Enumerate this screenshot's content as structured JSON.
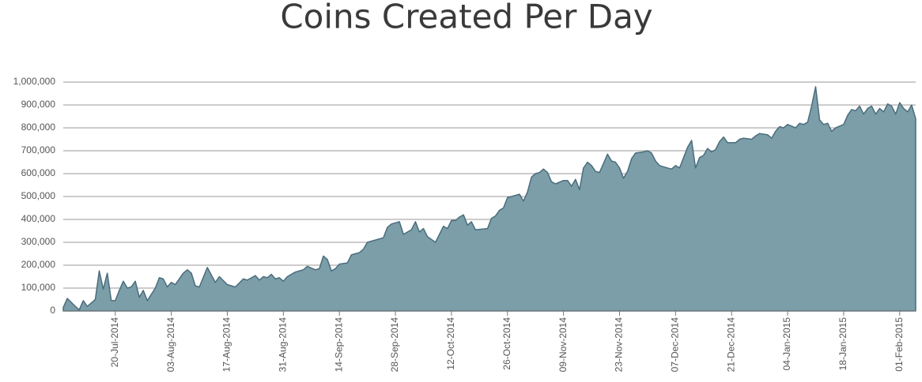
{
  "chart_data": {
    "type": "area",
    "title": "Coins Created Per Day",
    "color": "#7b9ea9",
    "line_color": "#4a6d7c",
    "grid": true,
    "x": [
      "07-Jul-2014",
      "08-Jul-2014",
      "10-Jul-2014",
      "11-Jul-2014",
      "12-Jul-2014",
      "13-Jul-2014",
      "14-Jul-2014",
      "15-Jul-2014",
      "16-Jul-2014",
      "17-Jul-2014",
      "18-Jul-2014",
      "19-Jul-2014",
      "20-Jul-2014",
      "21-Jul-2014",
      "22-Jul-2014",
      "23-Jul-2014",
      "24-Jul-2014",
      "25-Jul-2014",
      "26-Jul-2014",
      "27-Jul-2014",
      "28-Jul-2014",
      "30-Jul-2014",
      "31-Jul-2014",
      "01-Aug-2014",
      "02-Aug-2014",
      "03-Aug-2014",
      "04-Aug-2014",
      "06-Aug-2014",
      "07-Aug-2014",
      "08-Aug-2014",
      "09-Aug-2014",
      "10-Aug-2014",
      "12-Aug-2014",
      "14-Aug-2014",
      "15-Aug-2014",
      "17-Aug-2014",
      "19-Aug-2014",
      "21-Aug-2014",
      "22-Aug-2014",
      "24-Aug-2014",
      "25-Aug-2014",
      "26-Aug-2014",
      "27-Aug-2014",
      "28-Aug-2014",
      "29-Aug-2014",
      "30-Aug-2014",
      "31-Aug-2014",
      "01-Sep-2014",
      "03-Sep-2014",
      "05-Sep-2014",
      "06-Sep-2014",
      "08-Sep-2014",
      "09-Sep-2014",
      "10-Sep-2014",
      "11-Sep-2014",
      "12-Sep-2014",
      "13-Sep-2014",
      "14-Sep-2014",
      "16-Sep-2014",
      "17-Sep-2014",
      "19-Sep-2014",
      "20-Sep-2014",
      "21-Sep-2014",
      "23-Sep-2014",
      "25-Sep-2014",
      "26-Sep-2014",
      "27-Sep-2014",
      "29-Sep-2014",
      "30-Sep-2014",
      "02-Oct-2014",
      "03-Oct-2014",
      "04-Oct-2014",
      "05-Oct-2014",
      "06-Oct-2014",
      "08-Oct-2014",
      "10-Oct-2014",
      "11-Oct-2014",
      "12-Oct-2014",
      "13-Oct-2014",
      "14-Oct-2014",
      "15-Oct-2014",
      "16-Oct-2014",
      "17-Oct-2014",
      "18-Oct-2014",
      "21-Oct-2014",
      "22-Oct-2014",
      "23-Oct-2014",
      "24-Oct-2014",
      "25-Oct-2014",
      "26-Oct-2014",
      "27-Oct-2014",
      "29-Oct-2014",
      "30-Oct-2014",
      "31-Oct-2014",
      "01-Nov-2014",
      "02-Nov-2014",
      "03-Nov-2014",
      "04-Nov-2014",
      "05-Nov-2014",
      "06-Nov-2014",
      "07-Nov-2014",
      "09-Nov-2014",
      "10-Nov-2014",
      "11-Nov-2014",
      "12-Nov-2014",
      "13-Nov-2014",
      "14-Nov-2014",
      "15-Nov-2014",
      "16-Nov-2014",
      "17-Nov-2014",
      "18-Nov-2014",
      "20-Nov-2014",
      "21-Nov-2014",
      "22-Nov-2014",
      "23-Nov-2014",
      "24-Nov-2014",
      "25-Nov-2014",
      "26-Nov-2014",
      "27-Nov-2014",
      "29-Nov-2014",
      "30-Nov-2014",
      "01-Dec-2014",
      "02-Dec-2014",
      "03-Dec-2014",
      "05-Dec-2014",
      "06-Dec-2014",
      "07-Dec-2014",
      "08-Dec-2014",
      "09-Dec-2014",
      "10-Dec-2014",
      "11-Dec-2014",
      "12-Dec-2014",
      "13-Dec-2014",
      "14-Dec-2014",
      "15-Dec-2014",
      "16-Dec-2014",
      "17-Dec-2014",
      "18-Dec-2014",
      "19-Dec-2014",
      "20-Dec-2014",
      "22-Dec-2014",
      "23-Dec-2014",
      "24-Dec-2014",
      "26-Dec-2014",
      "27-Dec-2014",
      "28-Dec-2014",
      "30-Dec-2014",
      "31-Dec-2014",
      "01-Jan-2015",
      "02-Jan-2015",
      "03-Jan-2015",
      "04-Jan-2015",
      "06-Jan-2015",
      "07-Jan-2015",
      "08-Jan-2015",
      "09-Jan-2015",
      "10-Jan-2015",
      "11-Jan-2015",
      "12-Jan-2015",
      "13-Jan-2015",
      "14-Jan-2015",
      "15-Jan-2015",
      "16-Jan-2015",
      "18-Jan-2015",
      "19-Jan-2015",
      "20-Jan-2015",
      "21-Jan-2015",
      "22-Jan-2015",
      "23-Jan-2015",
      "24-Jan-2015",
      "25-Jan-2015",
      "26-Jan-2015",
      "27-Jan-2015",
      "28-Jan-2015",
      "29-Jan-2015",
      "30-Jan-2015",
      "31-Jan-2015",
      "01-Feb-2015",
      "02-Feb-2015",
      "03-Feb-2015",
      "04-Feb-2015",
      "05-Feb-2015"
    ],
    "values": [
      15000,
      55000,
      20000,
      5000,
      45000,
      20000,
      35000,
      50000,
      175000,
      95000,
      165000,
      45000,
      45000,
      90000,
      130000,
      100000,
      105000,
      130000,
      60000,
      90000,
      45000,
      100000,
      145000,
      140000,
      105000,
      125000,
      115000,
      165000,
      180000,
      165000,
      110000,
      105000,
      190000,
      125000,
      150000,
      115000,
      105000,
      140000,
      135000,
      155000,
      135000,
      150000,
      145000,
      160000,
      140000,
      145000,
      130000,
      150000,
      170000,
      180000,
      195000,
      180000,
      185000,
      240000,
      225000,
      175000,
      185000,
      205000,
      210000,
      245000,
      255000,
      270000,
      300000,
      310000,
      320000,
      365000,
      380000,
      390000,
      335000,
      355000,
      390000,
      345000,
      360000,
      325000,
      300000,
      370000,
      360000,
      395000,
      395000,
      410000,
      420000,
      375000,
      390000,
      355000,
      360000,
      405000,
      415000,
      440000,
      450000,
      495000,
      500000,
      510000,
      480000,
      520000,
      585000,
      600000,
      605000,
      620000,
      605000,
      565000,
      555000,
      570000,
      570000,
      545000,
      575000,
      530000,
      625000,
      650000,
      635000,
      610000,
      605000,
      685000,
      655000,
      650000,
      625000,
      580000,
      610000,
      665000,
      690000,
      695000,
      700000,
      690000,
      655000,
      635000,
      625000,
      620000,
      635000,
      625000,
      670000,
      715000,
      745000,
      625000,
      670000,
      680000,
      710000,
      695000,
      705000,
      740000,
      760000,
      735000,
      735000,
      750000,
      755000,
      750000,
      765000,
      775000,
      770000,
      755000,
      785000,
      805000,
      800000,
      815000,
      800000,
      820000,
      815000,
      825000,
      895000,
      980000,
      835000,
      815000,
      820000,
      785000,
      800000,
      815000,
      855000,
      880000,
      875000,
      895000,
      860000,
      885000,
      895000,
      860000,
      885000,
      870000,
      905000,
      895000,
      860000,
      910000,
      885000,
      870000,
      900000,
      840000
    ],
    "xlim": [
      "07-Jul-2014",
      "05-Feb-2015"
    ],
    "xticks": [
      "20-Jul-2014",
      "03-Aug-2014",
      "17-Aug-2014",
      "31-Aug-2014",
      "14-Sep-2014",
      "28-Sep-2014",
      "12-Oct-2014",
      "26-Oct-2014",
      "09-Nov-2014",
      "23-Nov-2014",
      "07-Dec-2014",
      "21-Dec-2014",
      "04-Jan-2015",
      "18-Jan-2015",
      "01-Feb-2015"
    ],
    "ylim": [
      0,
      1000000
    ],
    "yticks": [
      0,
      {
        "value": 100000,
        "label": "100,000"
      },
      {
        "value": 200000,
        "label": "200,000"
      },
      {
        "value": 300000,
        "label": "300,000"
      },
      {
        "value": 400000,
        "label": "400,000"
      },
      {
        "value": 500000,
        "label": "500,000"
      },
      {
        "value": 600000,
        "label": "600,000"
      },
      {
        "value": 700000,
        "label": "700,000"
      },
      {
        "value": 800000,
        "label": "800,000"
      },
      {
        "value": 900000,
        "label": "900,000"
      },
      {
        "value": 1000000,
        "label": "1,000,000"
      }
    ]
  }
}
